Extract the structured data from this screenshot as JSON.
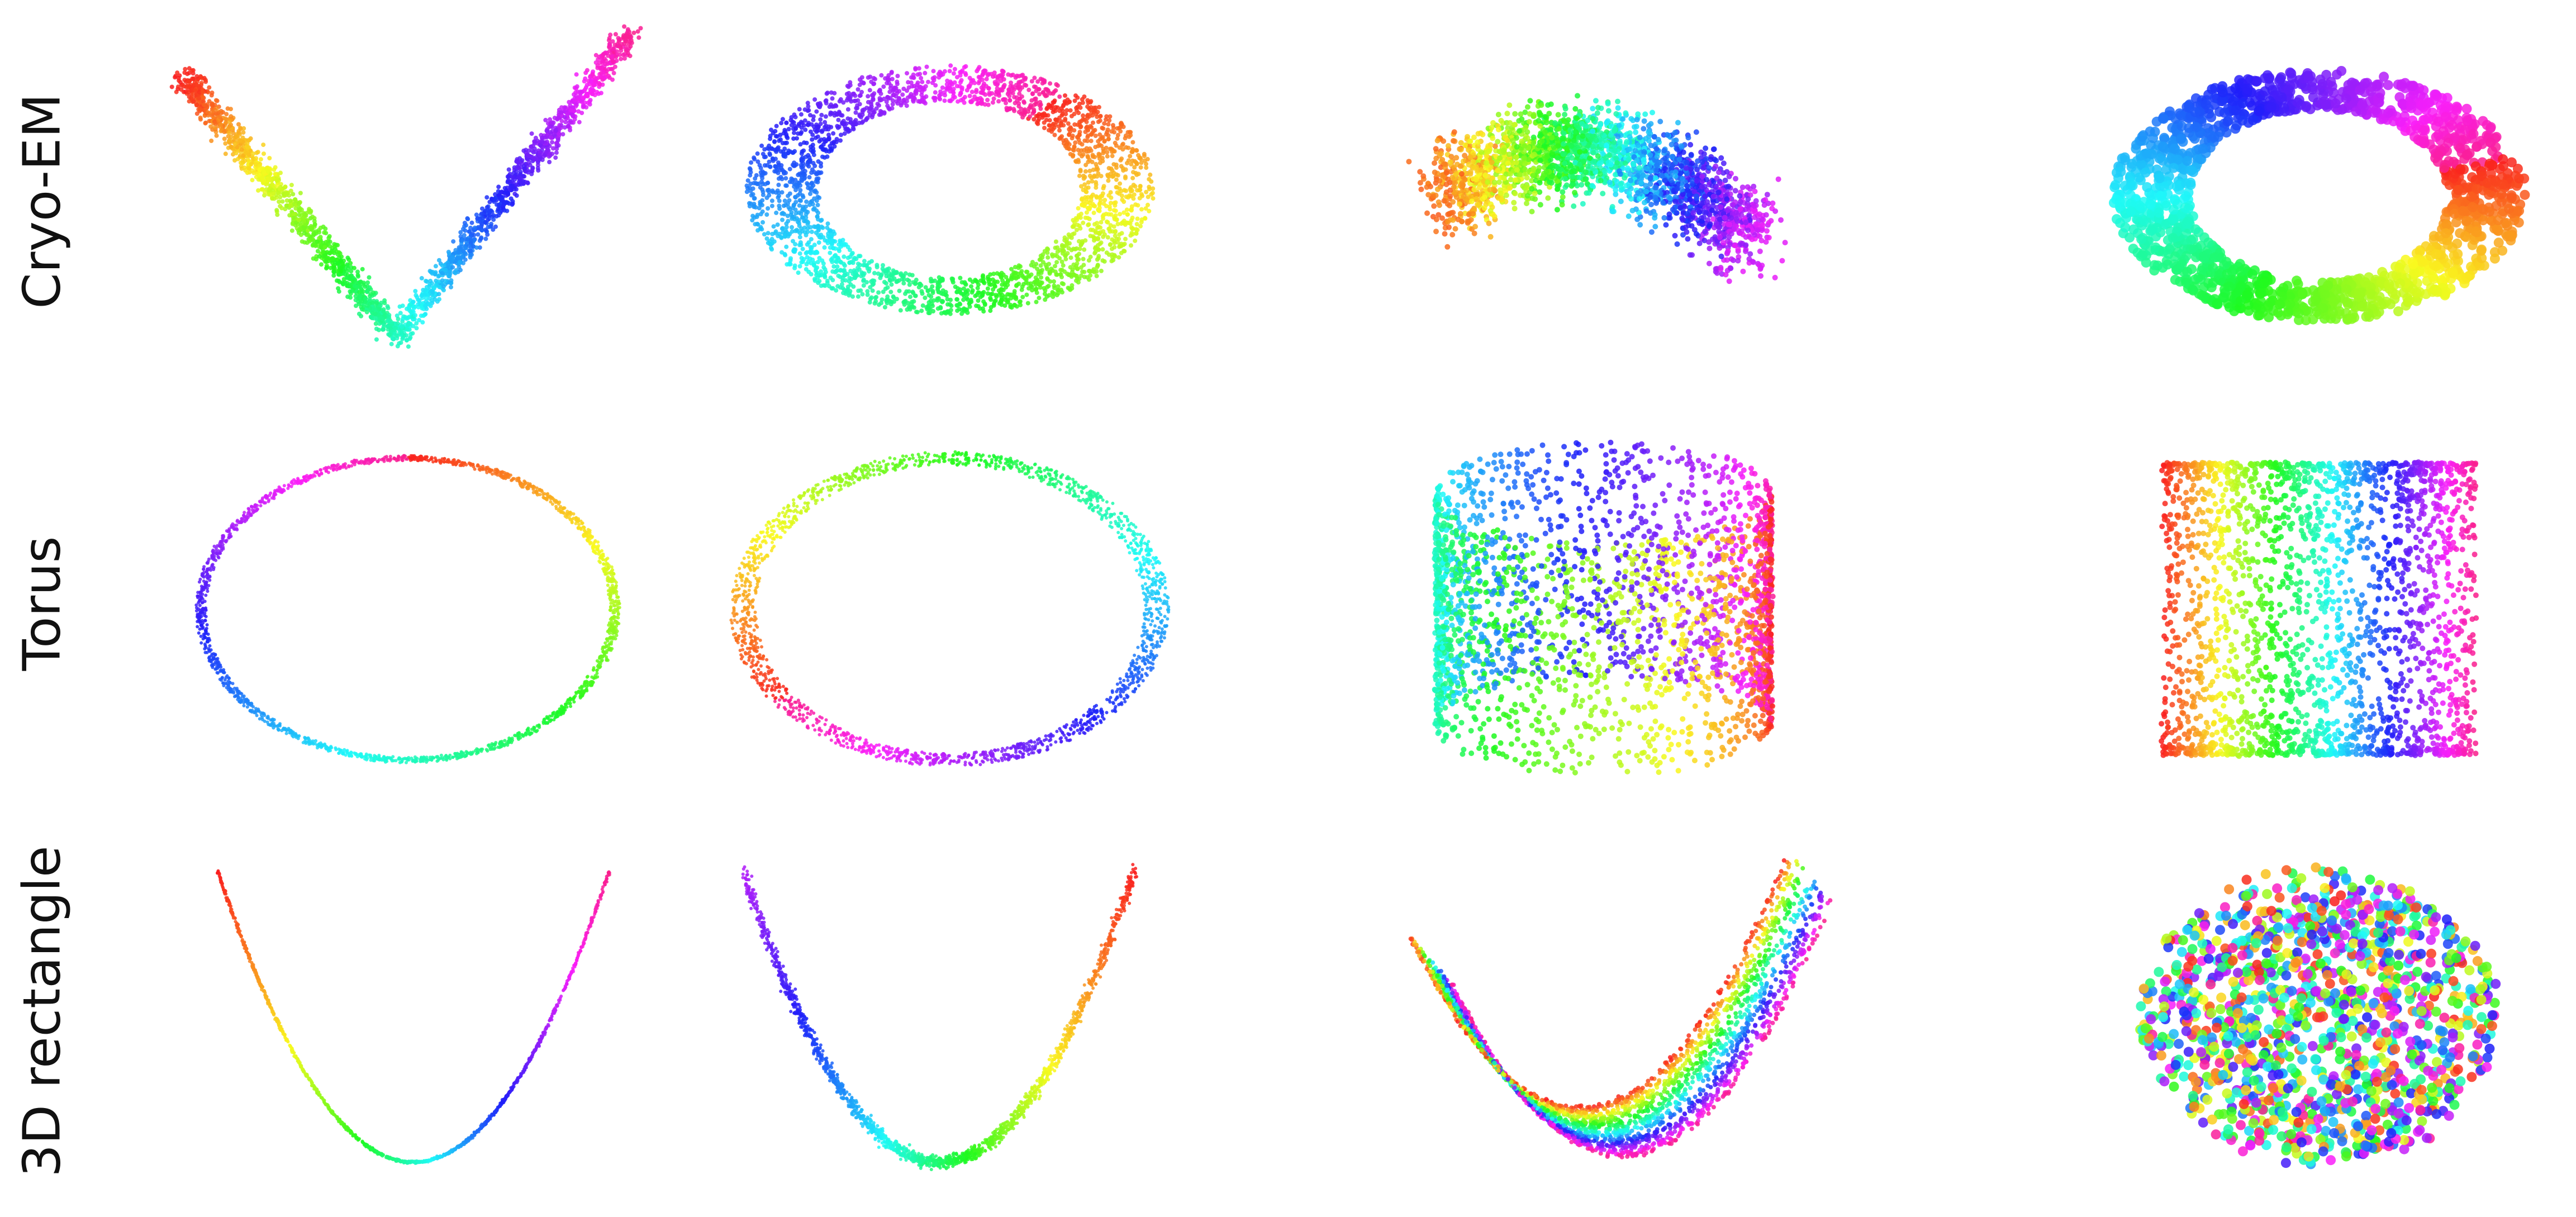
{
  "rows": [
    {
      "label": "Cryo-EM"
    },
    {
      "label": "Torus"
    },
    {
      "label": "3D rectangle"
    }
  ],
  "panels": [
    {
      "shape": "v-band"
    },
    {
      "shape": "loop-cloud"
    },
    {
      "shape": "bent-tube"
    },
    {
      "shape": "ring-cloud"
    },
    {
      "shape": "thin-ring"
    },
    {
      "shape": "twisted-ring"
    },
    {
      "shape": "cylinder-upright"
    },
    {
      "shape": "cylinder-tilted"
    },
    {
      "shape": "thin-parabola"
    },
    {
      "shape": "thick-parabola"
    },
    {
      "shape": "folded-sheet"
    },
    {
      "shape": "blob-cloud"
    }
  ],
  "colorscale": "rainbow-hue"
}
